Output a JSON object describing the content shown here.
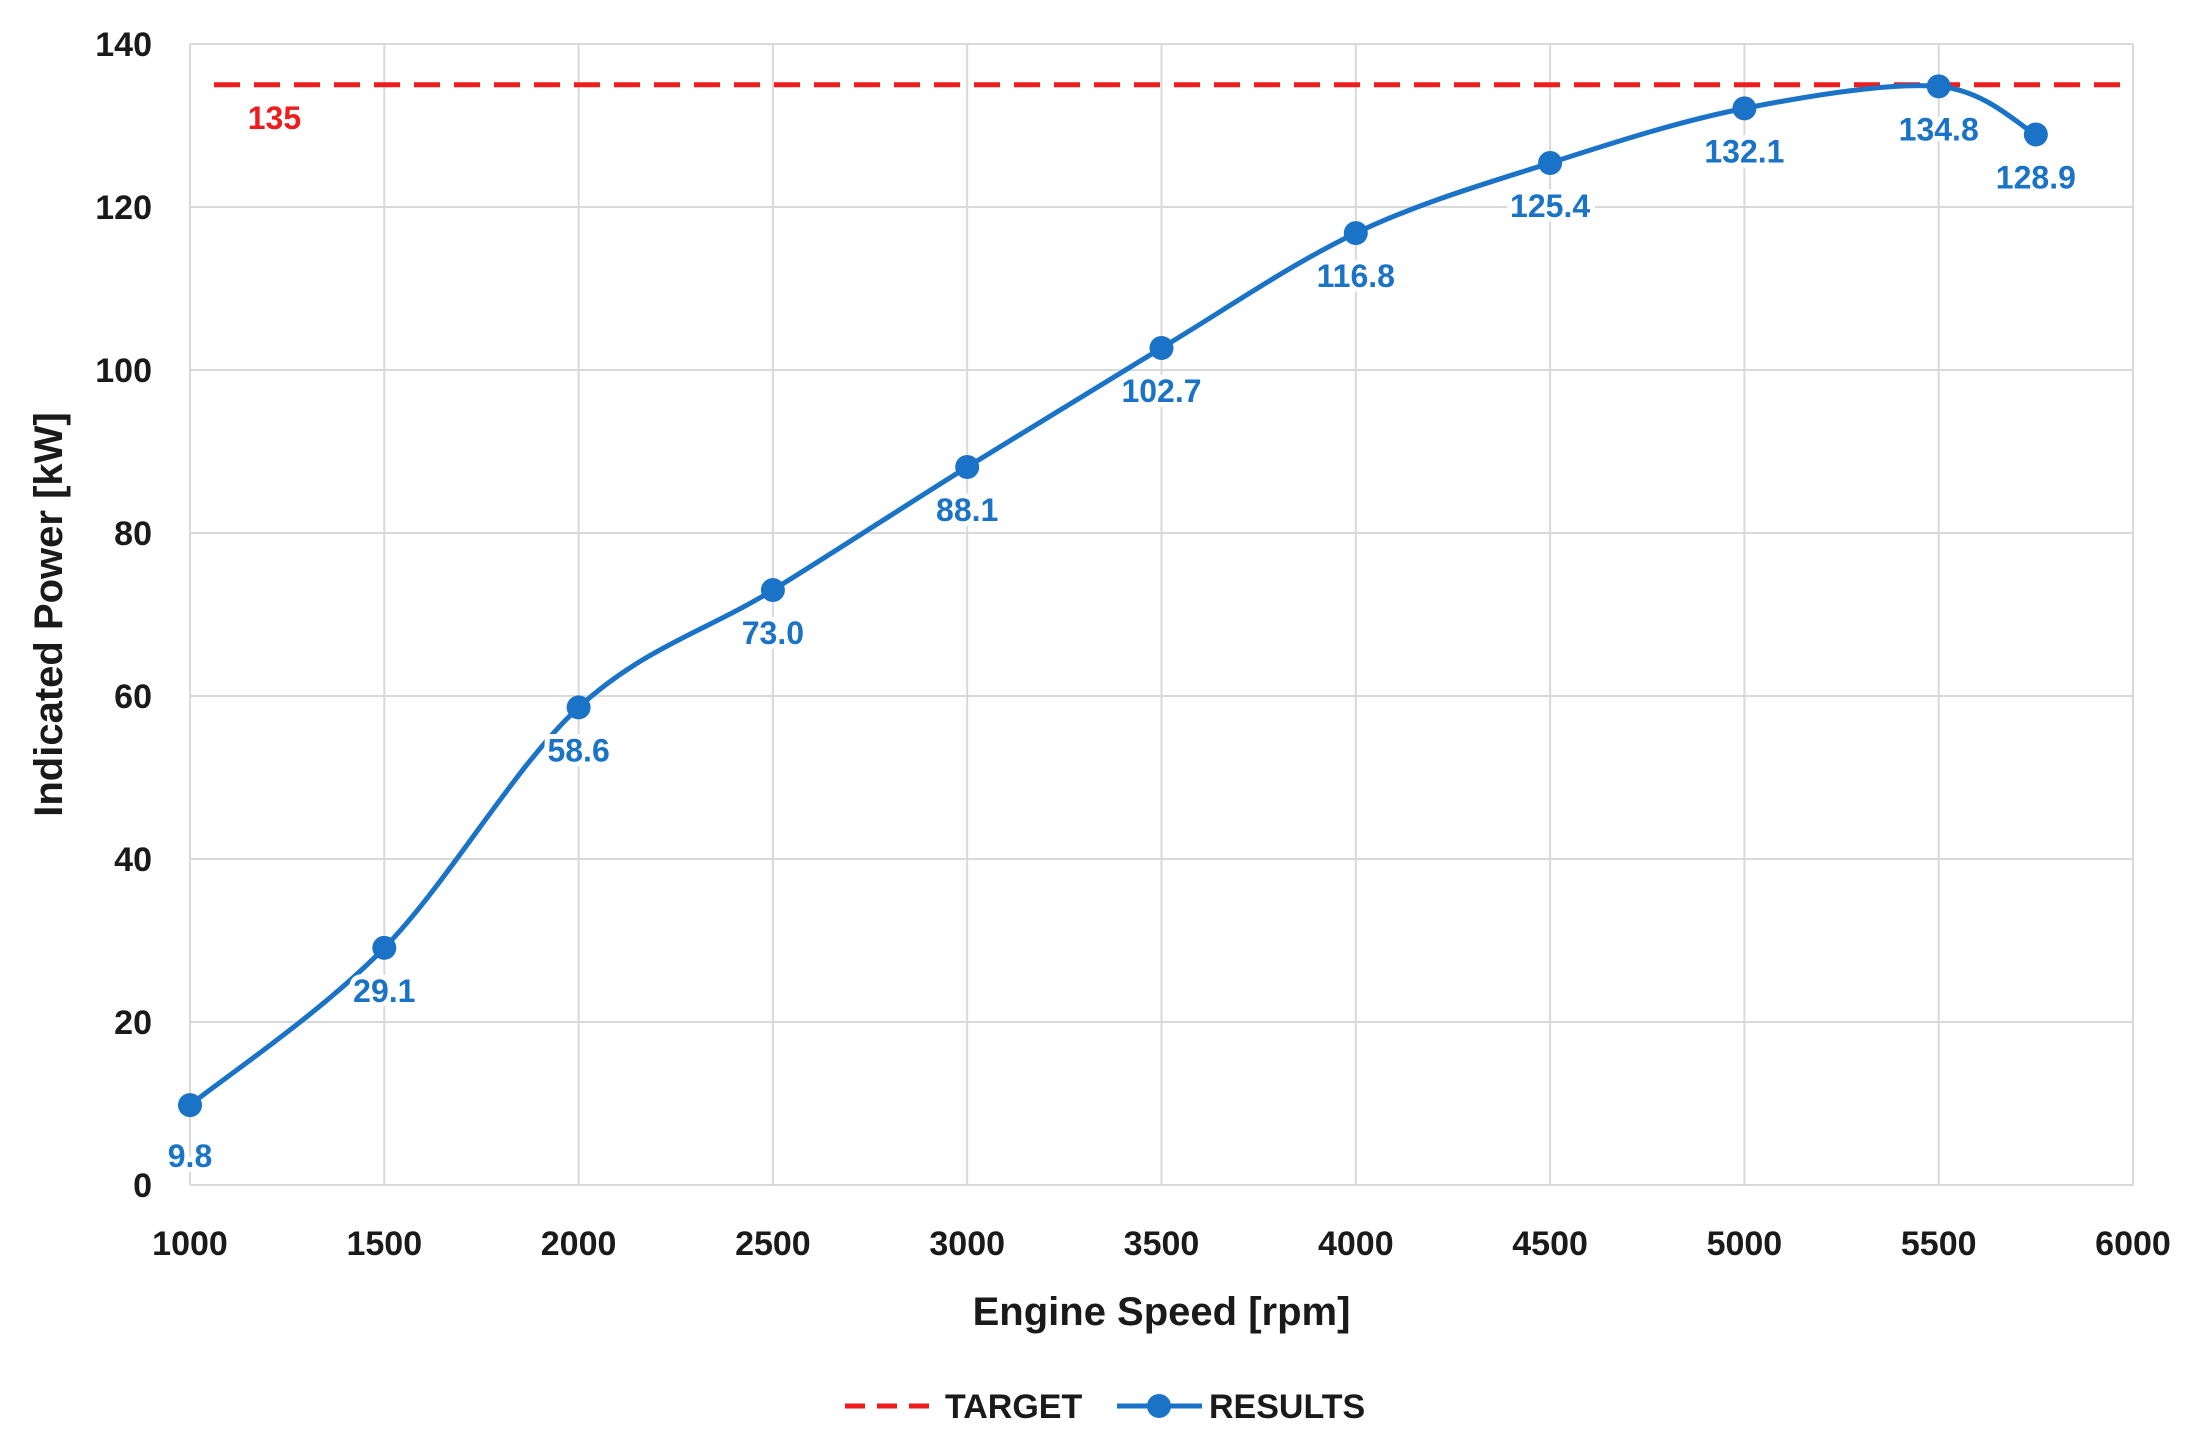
{
  "chart_data": {
    "type": "line",
    "title": "",
    "xlabel": "Engine Speed [rpm]",
    "ylabel": "Indicated Power [kW]",
    "xlim": [
      1000,
      6000
    ],
    "ylim": [
      0,
      140
    ],
    "x_ticks": [
      1000,
      1500,
      2000,
      2500,
      3000,
      3500,
      4000,
      4500,
      5000,
      5500,
      6000
    ],
    "y_ticks": [
      0,
      20,
      40,
      60,
      80,
      100,
      120,
      140
    ],
    "grid": true,
    "legend_position": "bottom",
    "series": [
      {
        "name": "TARGET",
        "style": "dashed",
        "color": "#ee1c1c",
        "x": [
          1000,
          6000
        ],
        "values": [
          135,
          135
        ],
        "label": "135"
      },
      {
        "name": "RESULTS",
        "style": "solid-markers",
        "color": "#1a73c6",
        "x": [
          1000,
          1500,
          2000,
          2500,
          3000,
          3500,
          4000,
          4500,
          5000,
          5500,
          5750
        ],
        "values": [
          9.8,
          29.1,
          58.6,
          73.0,
          88.1,
          102.7,
          116.8,
          125.4,
          132.1,
          134.8,
          128.9
        ],
        "labels": [
          "9.8",
          "29.1",
          "58.6",
          "73.0",
          "88.1",
          "102.7",
          "116.8",
          "125.4",
          "132.1",
          "134.8",
          "128.9"
        ]
      }
    ]
  }
}
